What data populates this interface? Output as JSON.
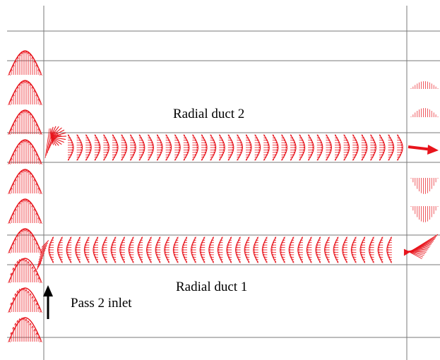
{
  "labels": {
    "radial_duct_2": "Radial duct 2",
    "radial_duct_1": "Radial duct 1",
    "pass_2_inlet": "Pass 2 inlet"
  },
  "colors": {
    "grid_line": "#7a7a7a",
    "vector": "#e8141c",
    "inlet_arrow": "#000000",
    "background": "#ffffff"
  },
  "icons": {
    "inlet_arrow": "up-arrow-icon",
    "outlet_arrow": "right-arrow-icon"
  }
}
